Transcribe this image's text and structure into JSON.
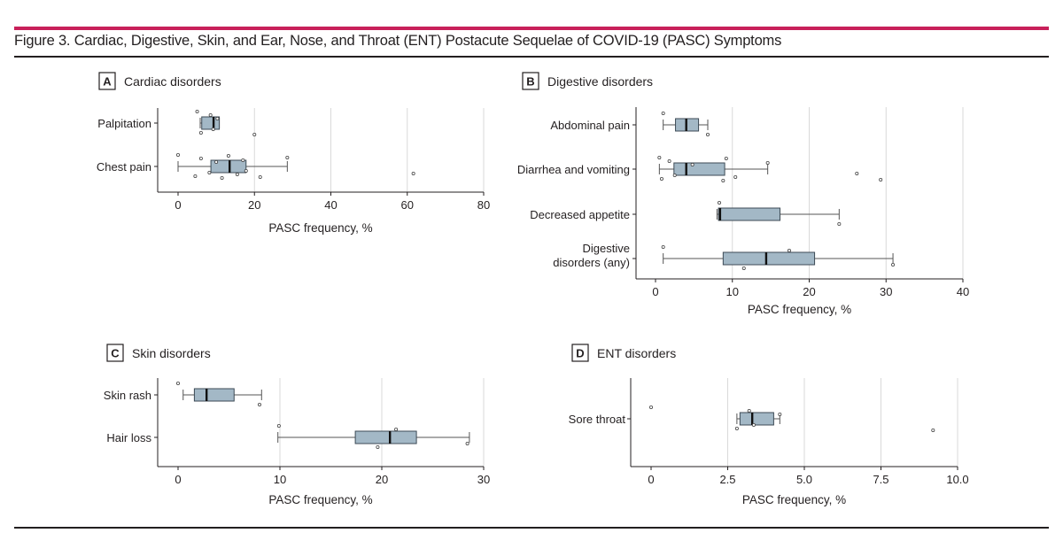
{
  "figure": {
    "title": "Figure 3. Cardiac, Digestive, Skin, and Ear, Nose, and Throat (ENT) Postacute Sequelae of COVID-19 (PASC) Symptoms",
    "accent_color": "#c8205a",
    "box_color": "#a3b8c6"
  },
  "chart_data": [
    {
      "type": "boxplot",
      "letter": "A",
      "title": "Cardiac disorders",
      "xlabel": "PASC frequency, %",
      "xlim": [
        -4,
        80
      ],
      "xticks": [
        0,
        20,
        40,
        60,
        80
      ],
      "tick_labels": [
        "0",
        "20",
        "40",
        "60",
        "80"
      ],
      "grid": true,
      "categories": [
        {
          "name": "Palpitation",
          "min": 5.8,
          "q1": 6.2,
          "median": 9.3,
          "q3": 10.8,
          "max": 10.8,
          "points": [
            5.0,
            6.0,
            8.5,
            9.2,
            10.3,
            20.0
          ]
        },
        {
          "name": "Chest pain",
          "min": 0,
          "q1": 8.6,
          "median": 13.5,
          "q3": 17.8,
          "max": 28.6,
          "points": [
            0,
            4.5,
            6.0,
            8.2,
            10.0,
            11.5,
            13.2,
            15.5,
            17.0,
            17.8,
            21.5,
            28.6,
            61.6
          ]
        }
      ]
    },
    {
      "type": "boxplot",
      "letter": "B",
      "title": "Digestive disorders",
      "xlabel": "PASC frequency, %",
      "xlim": [
        -2.5,
        40
      ],
      "xticks": [
        0,
        10,
        20,
        30,
        40
      ],
      "tick_labels": [
        "0",
        "10",
        "20",
        "30",
        "40"
      ],
      "grid": true,
      "categories": [
        {
          "name": "Abdominal pain",
          "min": 1.0,
          "q1": 2.6,
          "median": 4.0,
          "q3": 5.6,
          "max": 6.8,
          "points": [
            1.0,
            6.8
          ]
        },
        {
          "name": "Diarrhea and vomiting",
          "min": 0.5,
          "q1": 2.4,
          "median": 4.0,
          "q3": 9.0,
          "max": 14.6,
          "points": [
            0.5,
            0.8,
            1.8,
            2.5,
            4.8,
            8.8,
            9.2,
            10.4,
            14.6,
            26.2,
            29.3
          ]
        },
        {
          "name": "Decreased appetite",
          "min": 8.0,
          "q1": 8.2,
          "median": 8.4,
          "q3": 16.2,
          "max": 23.9,
          "points": [
            8.3,
            23.9
          ]
        },
        {
          "name": "Digestive disorders (any)",
          "label_lines": [
            "Digestive",
            "disorders (any)"
          ],
          "min": 1.0,
          "q1": 8.8,
          "median": 14.4,
          "q3": 20.7,
          "max": 30.9,
          "points": [
            1.0,
            11.5,
            17.4,
            30.9
          ]
        }
      ]
    },
    {
      "type": "boxplot",
      "letter": "C",
      "title": "Skin disorders",
      "xlabel": "PASC frequency, %",
      "xlim": [
        -1.5,
        30
      ],
      "xticks": [
        0,
        10,
        20,
        30
      ],
      "tick_labels": [
        "0",
        "10",
        "20",
        "30"
      ],
      "grid": true,
      "categories": [
        {
          "name": "Skin rash",
          "min": 0.5,
          "q1": 1.6,
          "median": 2.8,
          "q3": 5.5,
          "max": 8.2,
          "points": [
            0,
            8.0
          ]
        },
        {
          "name": "Hair loss",
          "min": 9.8,
          "q1": 17.4,
          "median": 20.8,
          "q3": 23.4,
          "max": 28.6,
          "points": [
            9.9,
            19.6,
            21.4,
            28.4
          ]
        }
      ]
    },
    {
      "type": "boxplot",
      "letter": "D",
      "title": "ENT disorders",
      "xlabel": "PASC frequency, %",
      "xlim": [
        -0.7,
        10
      ],
      "xticks": [
        0,
        2.5,
        5.0,
        7.5,
        10.0
      ],
      "tick_labels": [
        "0",
        "2.5",
        "5.0",
        "7.5",
        "10.0"
      ],
      "grid": true,
      "categories": [
        {
          "name": "Sore throat",
          "min": 2.8,
          "q1": 2.9,
          "median": 3.3,
          "q3": 4.0,
          "max": 4.2,
          "points": [
            0,
            2.8,
            3.2,
            3.35,
            4.2,
            9.2
          ]
        }
      ]
    }
  ]
}
